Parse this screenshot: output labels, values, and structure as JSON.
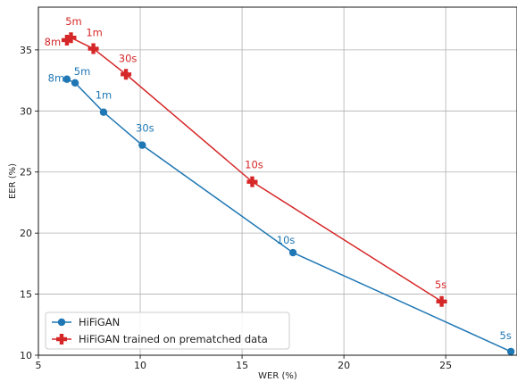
{
  "chart_data": {
    "type": "line",
    "xlabel": "WER (%)",
    "ylabel": "EER (%)",
    "xlim": [
      5,
      28.5
    ],
    "ylim": [
      10,
      38.5
    ],
    "xticks": [
      5,
      10,
      15,
      20,
      25
    ],
    "yticks": [
      10,
      15,
      20,
      25,
      30,
      35
    ],
    "grid": true,
    "legend_position": "lower-left",
    "series": [
      {
        "name": "HiFiGAN",
        "color": "#1f77b4",
        "marker": "circle",
        "points": [
          {
            "x": 6.4,
            "y": 32.6,
            "label": "8m"
          },
          {
            "x": 6.8,
            "y": 32.3,
            "label": "5m"
          },
          {
            "x": 8.2,
            "y": 29.9,
            "label": "1m"
          },
          {
            "x": 10.1,
            "y": 27.2,
            "label": "30s"
          },
          {
            "x": 17.5,
            "y": 18.4,
            "label": "10s"
          },
          {
            "x": 28.2,
            "y": 10.3,
            "label": "5s"
          }
        ]
      },
      {
        "name": "HiFiGAN trained on prematched data",
        "color": "#d62728",
        "marker": "plus",
        "points": [
          {
            "x": 6.4,
            "y": 35.8,
            "label": "8m"
          },
          {
            "x": 6.6,
            "y": 36.0,
            "label": "5m"
          },
          {
            "x": 7.7,
            "y": 35.1,
            "label": "1m"
          },
          {
            "x": 9.3,
            "y": 33.0,
            "label": "30s"
          },
          {
            "x": 15.5,
            "y": 24.2,
            "label": "10s"
          },
          {
            "x": 24.8,
            "y": 14.4,
            "label": "5s"
          }
        ]
      }
    ]
  }
}
